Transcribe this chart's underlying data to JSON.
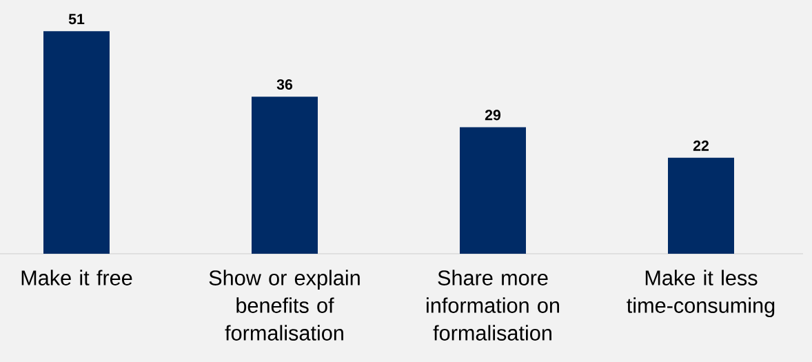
{
  "chart_data": {
    "type": "bar",
    "categories": [
      "Make it free",
      "Show or explain benefits of formalisation",
      "Share more information on formalisation",
      "Make it less time-consuming"
    ],
    "values": [
      51,
      36,
      29,
      22
    ],
    "color": "#002b66",
    "data_labels": true
  }
}
